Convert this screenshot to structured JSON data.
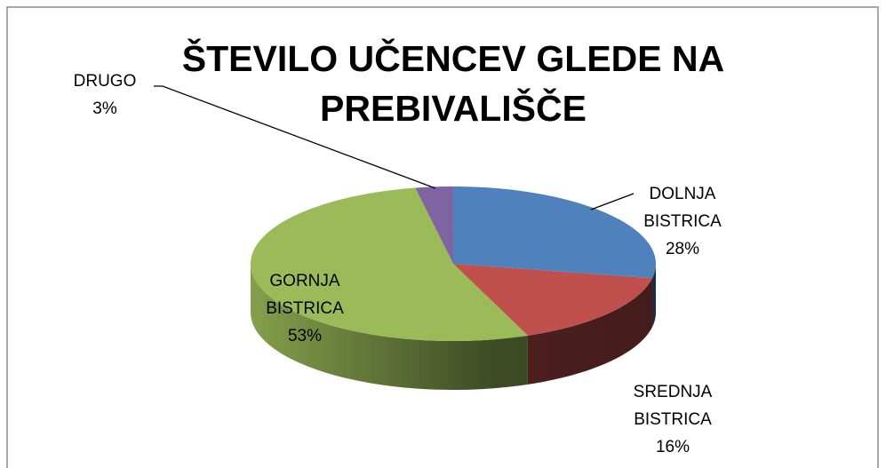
{
  "chart_data": {
    "type": "pie",
    "title": "ŠTEVILO UČENCEV GLEDE NA PREBIVALIŠČE",
    "categories": [
      "DOLNJA BISTRICA",
      "SREDNJA BISTRICA",
      "GORNJA BISTRICA",
      "DRUGO"
    ],
    "values": [
      28,
      16,
      53,
      3
    ],
    "value_labels": [
      "28%",
      "16%",
      "53%",
      "3%"
    ],
    "colors": [
      "#4f81bd",
      "#c0504d",
      "#9bbb59",
      "#8064a2"
    ]
  }
}
